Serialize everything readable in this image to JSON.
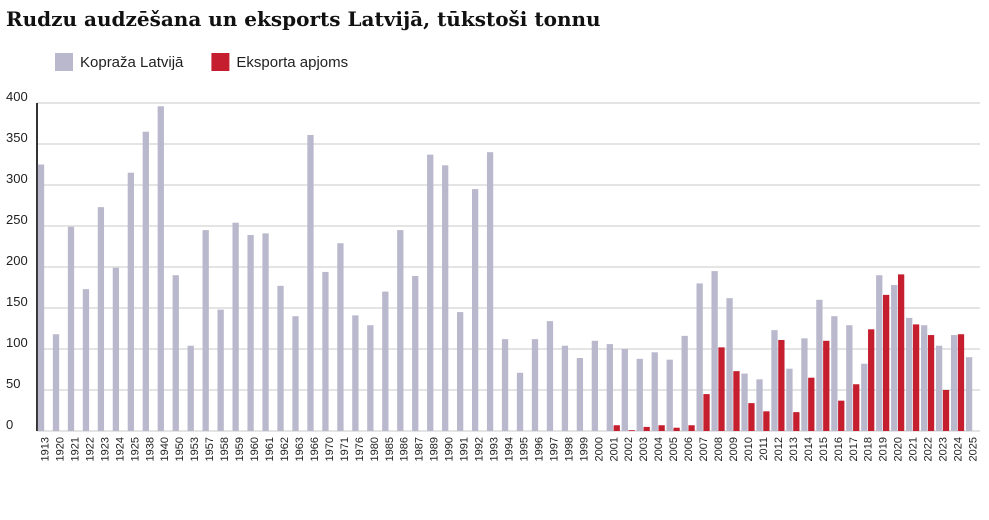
{
  "chart_data": {
    "type": "bar",
    "title": "Rudzu audzēšana un eksports Latvijā, tūkstoši tonnu",
    "categories": [
      "1913",
      "1920",
      "1921",
      "1922",
      "1923",
      "1924",
      "1925",
      "1938",
      "1940",
      "1950",
      "1953",
      "1957",
      "1958",
      "1959",
      "1960",
      "1961",
      "1962",
      "1963",
      "1966",
      "1970",
      "1971",
      "1976",
      "1980",
      "1985",
      "1986",
      "1987",
      "1989",
      "1990",
      "1991",
      "1992",
      "1993",
      "1994",
      "1995",
      "1996",
      "1997",
      "1998",
      "1999",
      "2000",
      "2001",
      "2002",
      "2003",
      "2004",
      "2005",
      "2006",
      "2007",
      "2008",
      "2009",
      "2010",
      "2011",
      "2012",
      "2013",
      "2014",
      "2015",
      "2016",
      "2017",
      "2018",
      "2019",
      "2020",
      "2021",
      "2022",
      "2023",
      "2024",
      "2025"
    ],
    "series": [
      {
        "name": "Kopraža Latvijā",
        "color": "#b9b8cc",
        "values": [
          325,
          118,
          249,
          173,
          273,
          199,
          315,
          365,
          396,
          190,
          104,
          245,
          148,
          254,
          239,
          241,
          177,
          140,
          361,
          194,
          229,
          141,
          129,
          170,
          245,
          189,
          337,
          324,
          145,
          295,
          340,
          112,
          71,
          112,
          134,
          104,
          89,
          110,
          106,
          100,
          88,
          96,
          87,
          116,
          180,
          195,
          162,
          70,
          63,
          123,
          76,
          113,
          160,
          140,
          129,
          82,
          190,
          178,
          138,
          129,
          104,
          117,
          90
        ]
      },
      {
        "name": "Eksporta apjoms",
        "color": "#c41e2f",
        "values": [
          null,
          null,
          null,
          null,
          null,
          null,
          null,
          null,
          null,
          null,
          null,
          null,
          null,
          null,
          null,
          null,
          null,
          null,
          null,
          null,
          null,
          null,
          null,
          null,
          null,
          null,
          null,
          null,
          null,
          null,
          null,
          null,
          null,
          null,
          null,
          null,
          null,
          null,
          7,
          1,
          5,
          7,
          4,
          7,
          45,
          102,
          73,
          34,
          24,
          111,
          23,
          65,
          110,
          37,
          57,
          124,
          166,
          191,
          130,
          117,
          50,
          118,
          null
        ]
      }
    ],
    "ylim": [
      0,
      400
    ],
    "yticks": [
      0,
      50,
      100,
      150,
      200,
      250,
      300,
      350,
      400
    ],
    "grid": true
  }
}
